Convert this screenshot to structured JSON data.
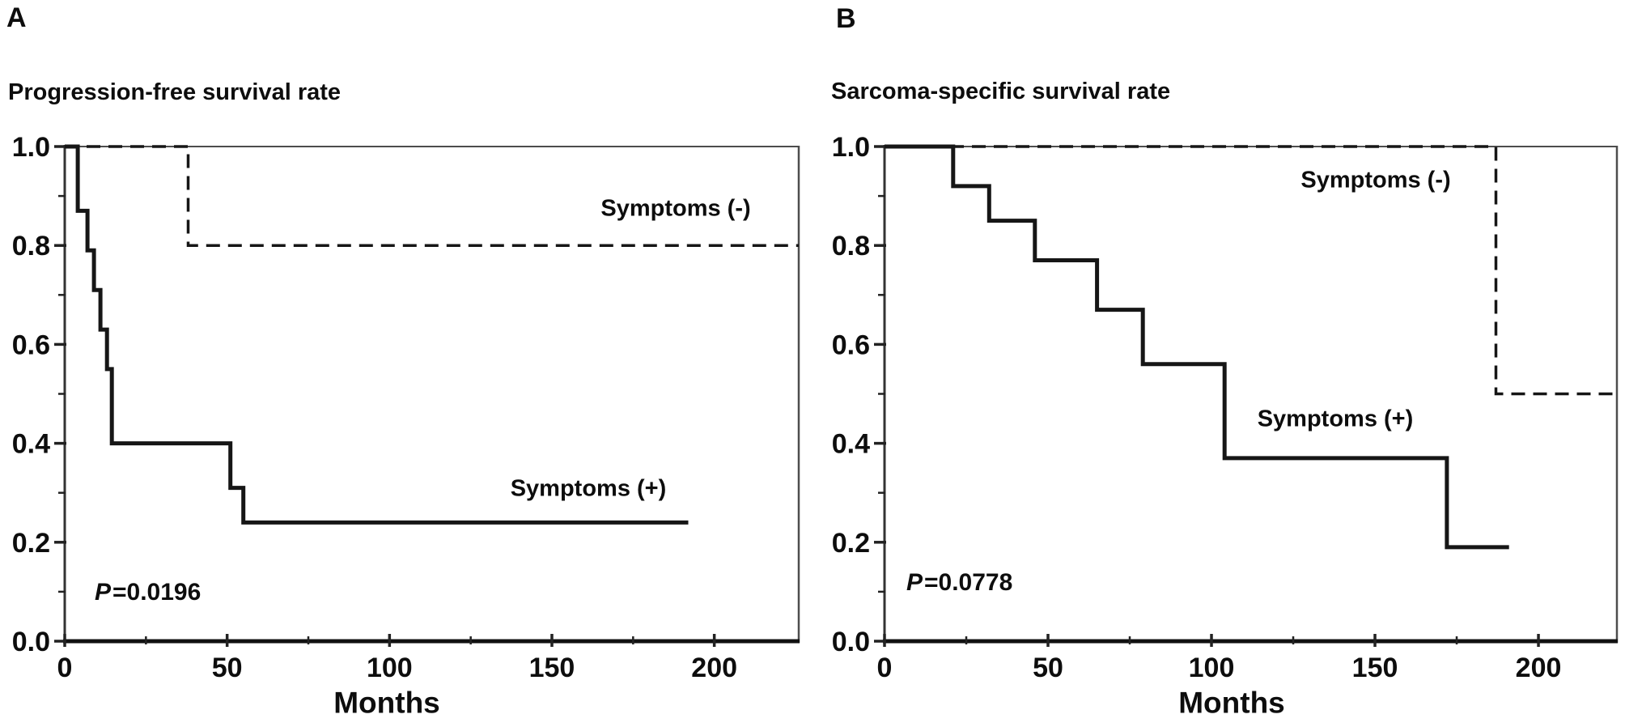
{
  "figure": {
    "background": "#ffffff",
    "line_color": "#161616",
    "axis_color": "#1a1a1a",
    "border_color": "#4d4d4d"
  },
  "chart_data": {
    "type": "line",
    "chart_style": "kaplan-meier step curves, two panels",
    "grid": "off",
    "panels": [
      {
        "letter": "A",
        "title": "Progression-free survival rate",
        "xlabel": "Months",
        "p_italic": "P",
        "p_rest": "=0.0196",
        "xlim": [
          0,
          226
        ],
        "ylim": [
          0,
          1
        ],
        "x_major_ticks": [
          0,
          50,
          100,
          150,
          200
        ],
        "x_minor_ticks": [
          25,
          75,
          125,
          175
        ],
        "y_major_ticks": [
          "1.0",
          "0.8",
          "0.6",
          "0.4",
          "0.2",
          "0.0"
        ],
        "y_minor_ticks": [
          0.9,
          0.7,
          0.5,
          0.3,
          0.1
        ],
        "series": [
          {
            "name": "Symptoms (-)",
            "line_style": "dashed",
            "points": [
              [
                0,
                1.0
              ],
              [
                38,
                1.0
              ],
              [
                38,
                0.8
              ],
              [
                226,
                0.8
              ]
            ]
          },
          {
            "name": "Symptoms (+)",
            "line_style": "solid",
            "points": [
              [
                0,
                1.0
              ],
              [
                4,
                1.0
              ],
              [
                4,
                0.87
              ],
              [
                7,
                0.87
              ],
              [
                7,
                0.79
              ],
              [
                9,
                0.79
              ],
              [
                9,
                0.71
              ],
              [
                11,
                0.71
              ],
              [
                11,
                0.63
              ],
              [
                13,
                0.63
              ],
              [
                13,
                0.55
              ],
              [
                14.5,
                0.55
              ],
              [
                14.5,
                0.4
              ],
              [
                51,
                0.4
              ],
              [
                51,
                0.31
              ],
              [
                55,
                0.31
              ],
              [
                55,
                0.24
              ],
              [
                192,
                0.24
              ]
            ]
          }
        ]
      },
      {
        "letter": "B",
        "title": "Sarcoma-specific survival rate",
        "xlabel": "Months",
        "p_italic": "P",
        "p_rest": "=0.0778",
        "xlim": [
          0,
          224
        ],
        "ylim": [
          0,
          1
        ],
        "x_major_ticks": [
          0,
          50,
          100,
          150,
          200
        ],
        "x_minor_ticks": [
          25,
          75,
          125,
          175
        ],
        "y_major_ticks": [
          "1.0",
          "0.8",
          "0.6",
          "0.4",
          "0.2",
          "0.0"
        ],
        "y_minor_ticks": [
          0.9,
          0.7,
          0.5,
          0.3,
          0.1
        ],
        "series": [
          {
            "name": "Symptoms (-)",
            "line_style": "dashed",
            "points": [
              [
                0,
                1.0
              ],
              [
                187,
                1.0
              ],
              [
                187,
                0.5
              ],
              [
                224,
                0.5
              ]
            ]
          },
          {
            "name": "Symptoms (+)",
            "line_style": "solid",
            "points": [
              [
                0,
                1.0
              ],
              [
                21,
                1.0
              ],
              [
                21,
                0.92
              ],
              [
                32,
                0.92
              ],
              [
                32,
                0.85
              ],
              [
                46,
                0.85
              ],
              [
                46,
                0.77
              ],
              [
                65,
                0.77
              ],
              [
                65,
                0.67
              ],
              [
                79,
                0.67
              ],
              [
                79,
                0.56
              ],
              [
                104,
                0.56
              ],
              [
                104,
                0.37
              ],
              [
                172,
                0.37
              ],
              [
                172,
                0.19
              ],
              [
                191,
                0.19
              ]
            ]
          }
        ]
      }
    ]
  }
}
